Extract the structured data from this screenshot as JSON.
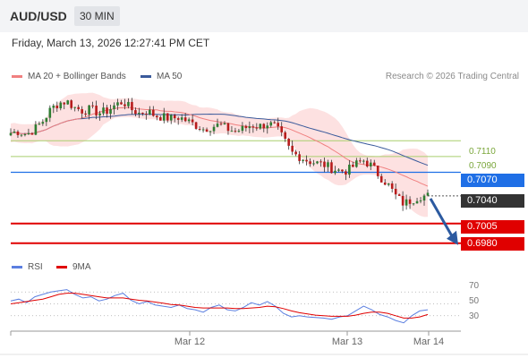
{
  "header": {
    "symbol": "AUD/USD",
    "timeframe": "30 MIN"
  },
  "datetime": "Friday, March 13, 2026 12:27:41 PM CET",
  "credit": "Research © 2026 Trading Central",
  "colors": {
    "ma20": "#f08080",
    "band": "#fcd4d4",
    "ma50": "#3a5a9b",
    "bull": "#2e7d32",
    "bear": "#b71c1c",
    "green_level": "#a9cf6d",
    "blue_level": "#1f6fe6",
    "red_level": "#e00000",
    "dark_box": "#333333",
    "rsi": "#5b7fe0",
    "rsi_ma": "#e00000",
    "arrow": "#2c5aa0"
  },
  "chart_data": [
    {
      "type": "candlestick",
      "legend": [
        "MA 20 + Bollinger Bands",
        "MA 50"
      ],
      "y_range": [
        0.6965,
        0.7175
      ],
      "x_tick_labels": [
        "Mar 12",
        "Mar 13",
        "Mar 14"
      ],
      "levels": [
        {
          "value": 0.711,
          "label": "0.7110",
          "style": "green-line"
        },
        {
          "value": 0.709,
          "label": "0.7090",
          "style": "green-line"
        },
        {
          "value": 0.707,
          "label": "0.7070",
          "style": "blue-box"
        },
        {
          "value": 0.704,
          "label": "0.7040",
          "style": "dark-box-current-price"
        },
        {
          "value": 0.7005,
          "label": "0.7005",
          "style": "red-box"
        },
        {
          "value": 0.698,
          "label": "0.6980",
          "style": "red-box"
        }
      ],
      "close_path": [
        0.712,
        0.7122,
        0.7118,
        0.7125,
        0.7135,
        0.715,
        0.7158,
        0.716,
        0.7152,
        0.7148,
        0.715,
        0.7145,
        0.7148,
        0.7155,
        0.716,
        0.715,
        0.7145,
        0.7148,
        0.7142,
        0.714,
        0.7138,
        0.714,
        0.7135,
        0.713,
        0.7125,
        0.7128,
        0.713,
        0.7125,
        0.7122,
        0.7125,
        0.713,
        0.7128,
        0.7132,
        0.7128,
        0.7112,
        0.7095,
        0.709,
        0.7085,
        0.7082,
        0.708,
        0.7075,
        0.7072,
        0.7072,
        0.708,
        0.7085,
        0.7078,
        0.7065,
        0.7055,
        0.704,
        0.703,
        0.7035,
        0.704,
        0.704
      ],
      "forecast_arrow": {
        "from": 0.704,
        "to": 0.698
      }
    },
    {
      "type": "line",
      "legend": [
        "RSI",
        "9MA"
      ],
      "y_ticks": [
        "70",
        "50",
        "30"
      ],
      "y_range": [
        10,
        90
      ],
      "rsi": [
        55,
        58,
        52,
        62,
        66,
        70,
        72,
        74,
        66,
        60,
        62,
        55,
        58,
        64,
        68,
        56,
        50,
        54,
        48,
        46,
        44,
        48,
        42,
        40,
        36,
        44,
        48,
        40,
        38,
        44,
        52,
        48,
        54,
        46,
        34,
        28,
        30,
        28,
        27,
        26,
        24,
        28,
        30,
        38,
        46,
        40,
        32,
        28,
        22,
        18,
        30,
        38,
        40
      ],
      "rsi_ma": [
        50,
        52,
        54,
        56,
        58,
        62,
        66,
        68,
        68,
        66,
        64,
        62,
        60,
        60,
        60,
        58,
        56,
        55,
        53,
        51,
        49,
        48,
        46,
        44,
        43,
        43,
        43,
        43,
        42,
        42,
        43,
        44,
        46,
        45,
        42,
        38,
        35,
        33,
        31,
        30,
        29,
        29,
        29,
        31,
        34,
        36,
        36,
        34,
        30,
        26,
        26,
        28,
        32
      ]
    }
  ]
}
